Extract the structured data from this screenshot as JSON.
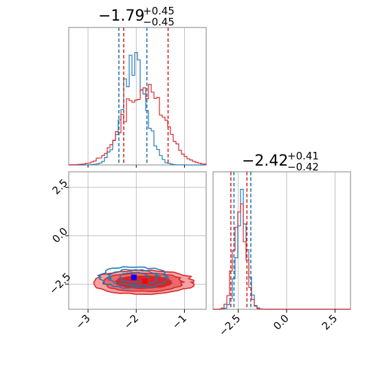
{
  "colors": {
    "blue": "#1f77b4",
    "red": "#d62728",
    "red_fill_dark": "#d62728",
    "red_fill_light": "#f4a3a4",
    "blue_marker": "#0000ff",
    "red_marker": "#ff0000",
    "grid": "#b0b0b0",
    "spine": "#808080"
  },
  "chart_data": [
    {
      "type": "histogram",
      "panel": "top-left",
      "parameter_index": 0,
      "title": {
        "median": "−1.79",
        "plus": "+0.45",
        "minus": "−0.45"
      },
      "xlim": [
        -3.4,
        -0.55
      ],
      "grid": true,
      "series": [
        {
          "color": "blue",
          "center": -2.05,
          "width": 0.25,
          "quantiles": [
            -2.36,
            -1.78
          ]
        },
        {
          "color": "red",
          "center": -1.85,
          "width": 0.42,
          "quantiles": [
            -2.26,
            -1.34
          ]
        }
      ]
    },
    {
      "type": "scatter-contour",
      "panel": "bottom-left",
      "xlim": [
        -3.4,
        -0.55
      ],
      "ylim": [
        -3.8,
        3.3
      ],
      "x_ticks": [
        -3,
        -2,
        -1
      ],
      "x_tick_labels": [
        "−3",
        "−2",
        "−1"
      ],
      "y_ticks": [
        -2.5,
        0.0,
        2.5
      ],
      "y_tick_labels": [
        "−2.5",
        "0.0",
        "2.5"
      ],
      "grid": true,
      "series": [
        {
          "color": "blue",
          "center": [
            -2.05,
            -2.15
          ],
          "marker": [
            -2.05,
            -2.15
          ]
        },
        {
          "color": "red",
          "center": [
            -1.85,
            -2.4
          ],
          "marker": [
            -1.82,
            -2.35
          ]
        }
      ]
    },
    {
      "type": "histogram",
      "panel": "bottom-right",
      "parameter_index": 1,
      "title": {
        "median": "−2.42",
        "plus": "+0.41",
        "minus": "−0.42"
      },
      "xlim": [
        -3.8,
        3.3
      ],
      "x_ticks": [
        -2.5,
        0.0,
        2.5
      ],
      "x_tick_labels": [
        "−2.5",
        "0.0",
        "2.5"
      ],
      "grid": true,
      "series": [
        {
          "color": "blue",
          "center": -2.3,
          "width": 0.28,
          "quantiles": [
            -2.72,
            -1.85
          ]
        },
        {
          "color": "red",
          "center": -2.42,
          "width": 0.3,
          "quantiles": [
            -2.88,
            -2.05
          ]
        }
      ]
    }
  ]
}
